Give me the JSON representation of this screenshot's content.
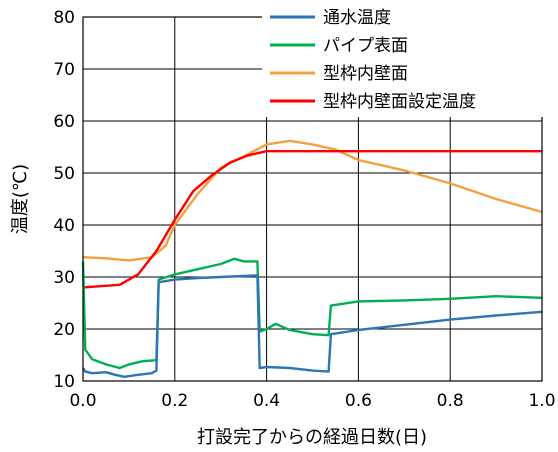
{
  "chart_data": {
    "type": "line",
    "title": "",
    "xlabel": "打設完了からの経過日数(日)",
    "ylabel": "温度(℃)",
    "xlim": [
      0,
      1
    ],
    "ylim": [
      10,
      80
    ],
    "x_ticks": [
      "0.0",
      "0.2",
      "0.4",
      "0.6",
      "0.8",
      "1.0"
    ],
    "y_ticks": [
      "10",
      "20",
      "30",
      "40",
      "50",
      "60",
      "70",
      "80"
    ],
    "grid": "vertical gridlines at each x tick, horizontal gridlines at each y tick",
    "legend_position": "top-right",
    "series": [
      {
        "name": "通水温度",
        "color": "#2e75b6",
        "points": [
          [
            0,
            12.5
          ],
          [
            0.005,
            11.8
          ],
          [
            0.02,
            11.5
          ],
          [
            0.05,
            11.7
          ],
          [
            0.07,
            11.2
          ],
          [
            0.09,
            10.8
          ],
          [
            0.12,
            11.2
          ],
          [
            0.15,
            11.5
          ],
          [
            0.16,
            12.0
          ],
          [
            0.165,
            29.0
          ],
          [
            0.2,
            29.5
          ],
          [
            0.25,
            29.8
          ],
          [
            0.3,
            30.0
          ],
          [
            0.35,
            30.2
          ],
          [
            0.38,
            30.3
          ],
          [
            0.385,
            12.5
          ],
          [
            0.4,
            12.7
          ],
          [
            0.45,
            12.5
          ],
          [
            0.5,
            12.0
          ],
          [
            0.535,
            11.8
          ],
          [
            0.54,
            19.0
          ],
          [
            0.6,
            19.8
          ],
          [
            0.7,
            20.8
          ],
          [
            0.8,
            21.8
          ],
          [
            0.9,
            22.6
          ],
          [
            1.0,
            23.3
          ]
        ]
      },
      {
        "name": "パイプ表面",
        "color": "#00b050",
        "points": [
          [
            0,
            33.0
          ],
          [
            0.005,
            16.0
          ],
          [
            0.02,
            14.2
          ],
          [
            0.05,
            13.2
          ],
          [
            0.08,
            12.5
          ],
          [
            0.1,
            13.2
          ],
          [
            0.13,
            13.8
          ],
          [
            0.16,
            14.0
          ],
          [
            0.165,
            29.5
          ],
          [
            0.2,
            30.5
          ],
          [
            0.25,
            31.5
          ],
          [
            0.3,
            32.5
          ],
          [
            0.33,
            33.5
          ],
          [
            0.35,
            33.0
          ],
          [
            0.38,
            33.0
          ],
          [
            0.385,
            19.5
          ],
          [
            0.4,
            20.0
          ],
          [
            0.42,
            21.0
          ],
          [
            0.45,
            19.8
          ],
          [
            0.5,
            19.0
          ],
          [
            0.535,
            18.8
          ],
          [
            0.54,
            24.5
          ],
          [
            0.6,
            25.3
          ],
          [
            0.7,
            25.5
          ],
          [
            0.8,
            25.8
          ],
          [
            0.9,
            26.3
          ],
          [
            1.0,
            26.0
          ]
        ]
      },
      {
        "name": "型枠内壁面",
        "color": "#f4a040",
        "points": [
          [
            0,
            33.8
          ],
          [
            0.05,
            33.6
          ],
          [
            0.1,
            33.2
          ],
          [
            0.15,
            33.8
          ],
          [
            0.18,
            36.0
          ],
          [
            0.2,
            40.0
          ],
          [
            0.25,
            46.0
          ],
          [
            0.3,
            51.0
          ],
          [
            0.35,
            53.2
          ],
          [
            0.4,
            55.5
          ],
          [
            0.45,
            56.2
          ],
          [
            0.5,
            55.5
          ],
          [
            0.55,
            54.5
          ],
          [
            0.6,
            52.5
          ],
          [
            0.7,
            50.5
          ],
          [
            0.8,
            48.0
          ],
          [
            0.9,
            45.0
          ],
          [
            1.0,
            42.5
          ]
        ]
      },
      {
        "name": "型枠内壁面設定温度",
        "color": "#ff0000",
        "points": [
          [
            0,
            28.0
          ],
          [
            0.08,
            28.5
          ],
          [
            0.12,
            30.5
          ],
          [
            0.16,
            35.0
          ],
          [
            0.2,
            41.0
          ],
          [
            0.24,
            46.5
          ],
          [
            0.28,
            49.5
          ],
          [
            0.32,
            52.0
          ],
          [
            0.36,
            53.4
          ],
          [
            0.4,
            54.2
          ],
          [
            0.5,
            54.2
          ],
          [
            0.6,
            54.2
          ],
          [
            0.7,
            54.2
          ],
          [
            0.8,
            54.2
          ],
          [
            0.9,
            54.2
          ],
          [
            1.0,
            54.2
          ]
        ]
      }
    ]
  }
}
